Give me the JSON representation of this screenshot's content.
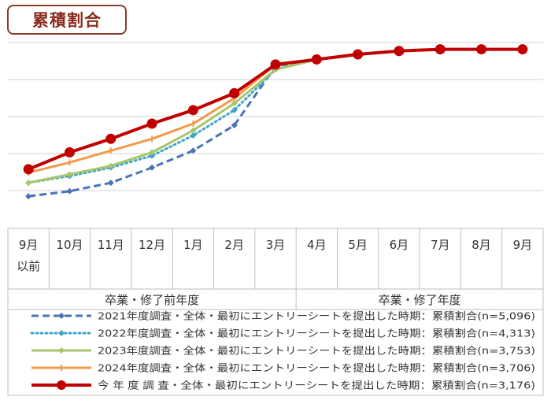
{
  "chart_data": {
    "type": "line",
    "title": "累積割合",
    "categories": [
      "9月\n以前",
      "10月",
      "11月",
      "12月",
      "1月",
      "2月",
      "3月",
      "4月",
      "5月",
      "6月",
      "7月",
      "8月",
      "9月"
    ],
    "groups": [
      {
        "label": "卒業・修了前年度"
      },
      {
        "label": "卒業・修了年度"
      }
    ],
    "series": [
      {
        "name": "2021年度調査・全体・最初にエントリーシートを提出した時期：累積割合(n=5,096)",
        "values": [
          19,
          22,
          27,
          36,
          46,
          61,
          96,
          100,
          103,
          105,
          106,
          106,
          106
        ],
        "color": "#4a74b4",
        "style": "dashed",
        "marker": "diamond"
      },
      {
        "name": "2022年度調査・全体・最初にエントリーシートを提出した時期：累積割合(n=4,313)",
        "values": [
          27,
          31,
          36,
          43,
          55,
          70,
          94,
          100,
          103,
          105,
          106,
          106,
          106
        ],
        "color": "#3fa6c8",
        "style": "dotted",
        "marker": "diamond"
      },
      {
        "name": "2023年度調査・全体・最初にエントリーシートを提出した時期：累積割合(n=3,753)",
        "values": [
          27,
          32,
          37,
          45,
          58,
          74,
          94,
          100,
          103,
          105,
          106,
          106,
          106
        ],
        "color": "#a9c56b",
        "style": "solid",
        "marker": "diamond"
      },
      {
        "name": "2024年度調査・全体・最初にエントリーシートを提出した時期：累積割合(n=3,706)",
        "values": [
          33,
          39,
          46,
          53,
          62,
          77,
          97,
          100,
          103,
          105,
          106,
          106,
          106
        ],
        "color": "#f39a4a",
        "style": "solid",
        "marker": "dash"
      },
      {
        "name": "今 年 度 調 査・全体・最初にエントリーシートを提出した時期：累積割合(n=3,176)",
        "values": [
          35,
          45,
          53,
          62,
          70,
          80,
          97,
          100,
          103,
          105,
          106,
          106,
          106
        ],
        "color": "#c00000",
        "style": "solid",
        "marker": "circle"
      }
    ],
    "ylim": [
      0,
      110
    ],
    "grid": true,
    "legend_position": "bottom"
  }
}
